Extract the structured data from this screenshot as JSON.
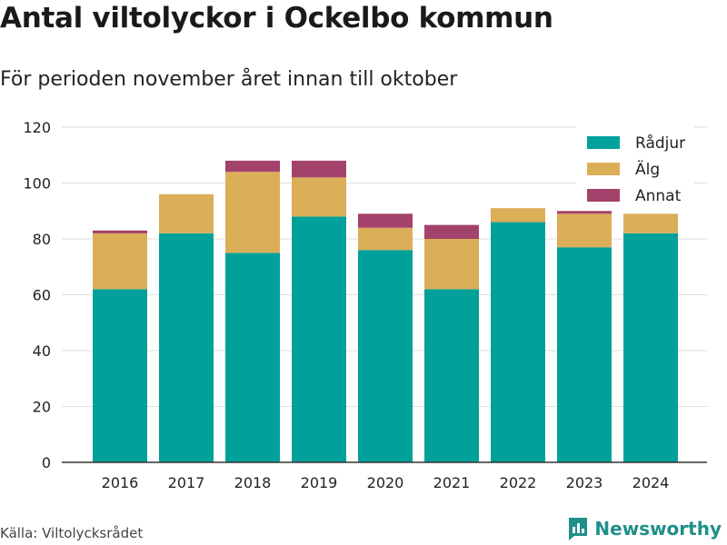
{
  "title": "Antal viltolyckor i Ockelbo kommun",
  "subtitle": "För perioden november året innan till oktober",
  "source": "Källa: Viltolycksrådet",
  "brand": "Newsworthy",
  "colors": {
    "radjur": "#00a19a",
    "alg": "#dbae58",
    "annat": "#a3426a",
    "grid": "#dedede",
    "axis": "#333333",
    "brand": "#1f8f8a"
  },
  "chart_data": {
    "type": "bar",
    "stacked": true,
    "categories": [
      "2016",
      "2017",
      "2018",
      "2019",
      "2020",
      "2021",
      "2022",
      "2023",
      "2024"
    ],
    "series": [
      {
        "name": "Rådjur",
        "color": "#00a19a",
        "values": [
          62,
          82,
          75,
          88,
          76,
          62,
          86,
          77,
          82
        ]
      },
      {
        "name": "Älg",
        "color": "#dbae58",
        "values": [
          20,
          14,
          29,
          14,
          8,
          18,
          5,
          12,
          7
        ]
      },
      {
        "name": "Annat",
        "color": "#a3426a",
        "values": [
          1,
          0,
          4,
          6,
          5,
          5,
          0,
          1,
          0
        ]
      }
    ],
    "ylim": [
      0,
      120
    ],
    "yticks": [
      0,
      20,
      40,
      60,
      80,
      100,
      120
    ],
    "grid": true,
    "legend_position": "top-right"
  }
}
